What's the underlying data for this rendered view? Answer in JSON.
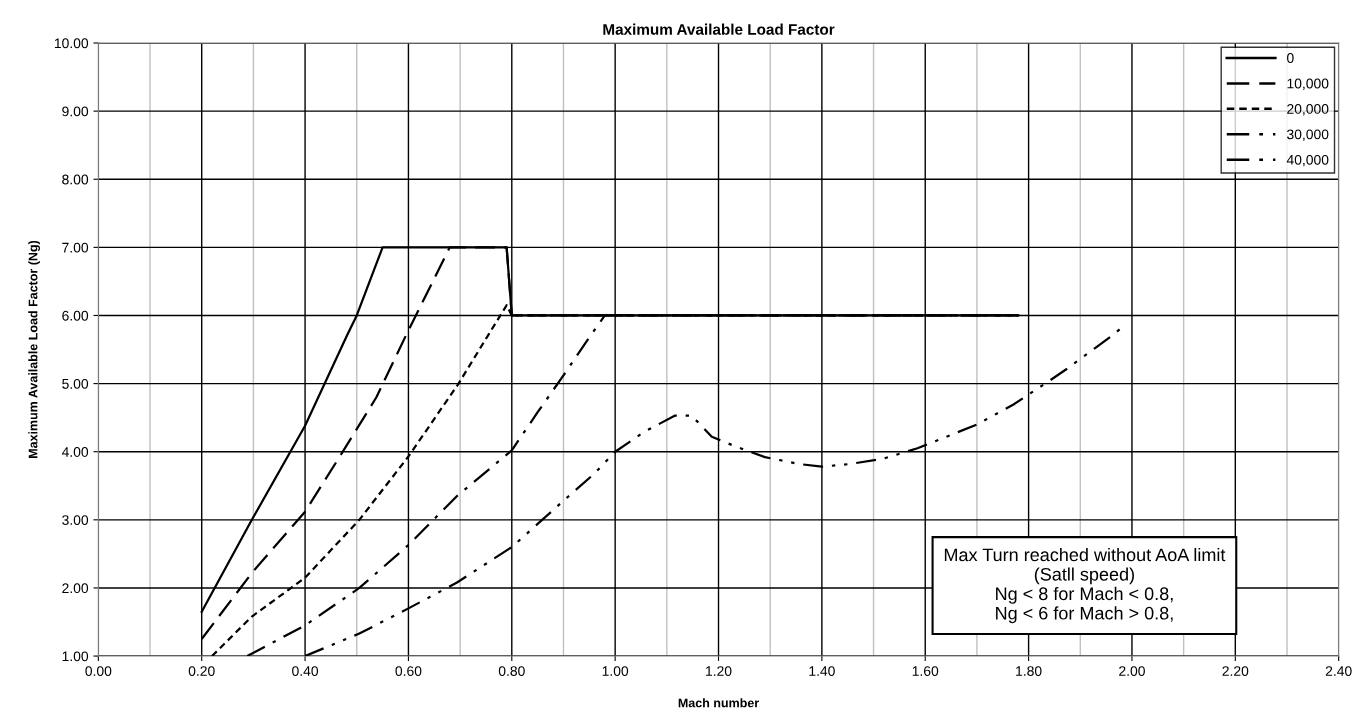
{
  "chart_data": {
    "type": "line",
    "title": "Maximum Available Load Factor",
    "xlabel": "Mach number",
    "ylabel": "Maximum Available Load Factor (Ng)",
    "xlim": [
      0,
      2.4
    ],
    "ylim": [
      1,
      10
    ],
    "xticks": [
      {
        "value": 0,
        "label": "0.00"
      },
      {
        "value": 0.2,
        "label": "0.20"
      },
      {
        "value": 0.4,
        "label": "0.40"
      },
      {
        "value": 0.6,
        "label": "0.60"
      },
      {
        "value": 0.8,
        "label": "0.80"
      },
      {
        "value": 1.0,
        "label": "1.00"
      },
      {
        "value": 1.2,
        "label": "1.20"
      },
      {
        "value": 1.4,
        "label": "1.40"
      },
      {
        "value": 1.6,
        "label": "1.60"
      },
      {
        "value": 1.8,
        "label": "1.80"
      },
      {
        "value": 2.0,
        "label": "2.00"
      },
      {
        "value": 2.2,
        "label": "2.20"
      },
      {
        "value": 2.4,
        "label": "2.40"
      }
    ],
    "yticks": [
      {
        "value": 1,
        "label": "1.00"
      },
      {
        "value": 2,
        "label": "2.00"
      },
      {
        "value": 3,
        "label": "3.00"
      },
      {
        "value": 4,
        "label": "4.00"
      },
      {
        "value": 5,
        "label": "5.00"
      },
      {
        "value": 6,
        "label": "6.00"
      },
      {
        "value": 7,
        "label": "7.00"
      },
      {
        "value": 8,
        "label": "8.00"
      },
      {
        "value": 9,
        "label": "9.00"
      },
      {
        "value": 10,
        "label": "10.00"
      }
    ],
    "grid": true,
    "legend": "top right",
    "marker": "none",
    "series": [
      {
        "name": "0",
        "color": "#000000",
        "line_style": "solid",
        "x": [
          0.2,
          0.297,
          0.4,
          0.482,
          0.5,
          0.55,
          0.79,
          0.8,
          1.0,
          1.78
        ],
        "values": [
          1.65,
          3.0,
          4.38,
          5.72,
          6.0,
          7.0,
          7.0,
          6.0,
          6.0,
          6.0
        ]
      },
      {
        "name": "10,000",
        "color": "#000000",
        "line_style": "dashed",
        "x": [
          0.2,
          0.297,
          0.4,
          0.473,
          0.538,
          0.596,
          0.68,
          0.79,
          0.8,
          1.78
        ],
        "values": [
          1.25,
          2.22,
          3.12,
          4.0,
          4.8,
          5.72,
          7.0,
          7.0,
          6.0,
          6.0
        ]
      },
      {
        "name": "20,000",
        "color": "#000000",
        "line_style": "dotted",
        "x": [
          0.22,
          0.297,
          0.4,
          0.505,
          0.6,
          0.697,
          0.755,
          0.79,
          0.8,
          1.78
        ],
        "values": [
          1.0,
          1.58,
          2.15,
          3.0,
          3.93,
          5.0,
          5.72,
          6.15,
          6.0,
          6.0
        ]
      },
      {
        "name": "30,000",
        "color": "#000000",
        "line_style": "dashdot",
        "x": [
          0.288,
          0.4,
          0.505,
          0.6,
          0.694,
          0.8,
          0.85,
          0.9,
          0.95,
          0.98,
          1.78
        ],
        "values": [
          1.0,
          1.45,
          2.0,
          2.63,
          3.35,
          4.02,
          4.58,
          5.12,
          5.68,
          6.0,
          6.0
        ]
      },
      {
        "name": "40,000",
        "color": "#000000",
        "line_style": "dashdotdot",
        "x": [
          0.4,
          0.505,
          0.6,
          0.694,
          0.8,
          0.856,
          0.9,
          0.96,
          1.0,
          1.058,
          1.116,
          1.148,
          1.187,
          1.232,
          1.29,
          1.355,
          1.4,
          1.455,
          1.52,
          1.585,
          1.7,
          1.77,
          1.84,
          1.873,
          1.932,
          1.964,
          1.98
        ],
        "values": [
          1.0,
          1.33,
          1.7,
          2.08,
          2.6,
          2.98,
          3.28,
          3.68,
          4.0,
          4.3,
          4.53,
          4.53,
          4.22,
          4.08,
          3.92,
          3.82,
          3.78,
          3.82,
          3.9,
          4.05,
          4.4,
          4.69,
          5.04,
          5.21,
          5.54,
          5.72,
          5.82
        ]
      }
    ],
    "annotations": [
      "Max Turn reached without AoA limit\n(Satll speed)\nNg < 8 for Mach < 0.8,\nNg < 6 for Mach > 0.8,"
    ]
  }
}
